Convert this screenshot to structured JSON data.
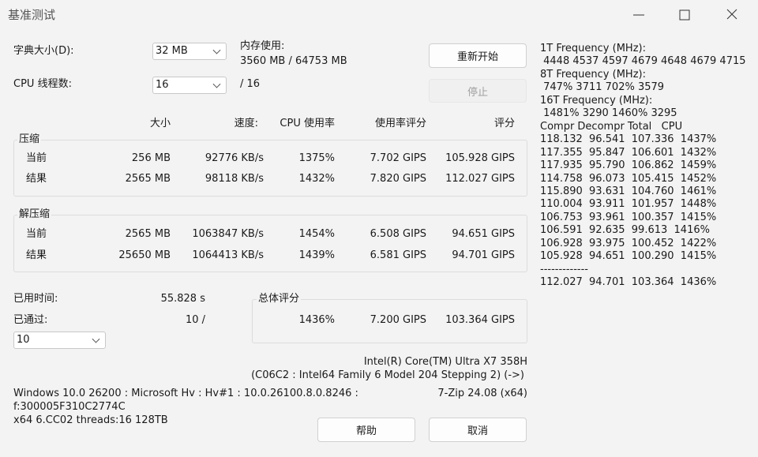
{
  "window": {
    "title": "基准测试"
  },
  "settings": {
    "dict_label": "字典大小(D):",
    "dict_value": "32 MB",
    "threads_label": "CPU 线程数:",
    "threads_value": "16",
    "threads_max": "/ 16",
    "memory_label": "内存使用:",
    "memory_value": "3560 MB / 64753 MB"
  },
  "buttons": {
    "restart": "重新开始",
    "stop": "停止",
    "help": "帮助",
    "cancel": "取消"
  },
  "table": {
    "headers": [
      "大小",
      "速度:",
      "CPU 使用率",
      "使用率评分",
      "评分"
    ],
    "groups": [
      {
        "title": "压缩",
        "rows": [
          [
            "当前",
            "256 MB",
            "92776 KB/s",
            "1375%",
            "7.702 GIPS",
            "105.928 GIPS"
          ],
          [
            "结果",
            "2565 MB",
            "98118 KB/s",
            "1432%",
            "7.820 GIPS",
            "112.027 GIPS"
          ]
        ]
      },
      {
        "title": "解压缩",
        "rows": [
          [
            "当前",
            "2565 MB",
            "1063847 KB/s",
            "1454%",
            "6.508 GIPS",
            "94.651 GIPS"
          ],
          [
            "结果",
            "25650 MB",
            "1064413 KB/s",
            "1439%",
            "6.581 GIPS",
            "94.701 GIPS"
          ]
        ]
      }
    ]
  },
  "summary": {
    "elapsed_label": "已用时间:",
    "elapsed_value": "55.828 s",
    "passes_label": "已通过:",
    "passes_value": "10 /",
    "passes_select": "10",
    "total_title": "总体评分",
    "total": [
      "1436%",
      "7.200 GIPS",
      "103.364 GIPS"
    ]
  },
  "system": {
    "cpu": "Intel(R) Core(TM) Ultra X7 358H",
    "cpu_detail": "(C06C2 : Intel64 Family 6 Model 204 Stepping 2) (->)",
    "os_lines": [
      "Windows 10.0 26200 : Microsoft Hv : Hv#1 : 10.0.26100.8.0.8246 :",
      "f:300005F310C2774C",
      "x64 6.CC02 threads:16 128TB"
    ],
    "version": "7-Zip 24.08 (x64)"
  },
  "log": {
    "lines": [
      "1T Frequency (MHz):",
      " 4448 4537 4597 4679 4648 4679 4715",
      "8T Frequency (MHz):",
      " 747% 3711 702% 3579",
      "16T Frequency (MHz):",
      " 1481% 3290 1460% 3295",
      "Compr Decompr Total   CPU",
      "118.132  96.541  107.336  1437%",
      "117.355  95.847  106.601  1432%",
      "117.935  95.790  106.862  1459%",
      "114.758  96.073  105.415  1452%",
      "115.890  93.631  104.760  1461%",
      "110.004  93.911  101.957  1448%",
      "106.753  93.961  100.357  1415%",
      "106.591  92.635  99.613  1416%",
      "106.928  93.975  100.452  1422%",
      "105.928  94.651  100.290  1415%",
      "-------------",
      "112.027  94.701  103.364  1436%"
    ]
  }
}
